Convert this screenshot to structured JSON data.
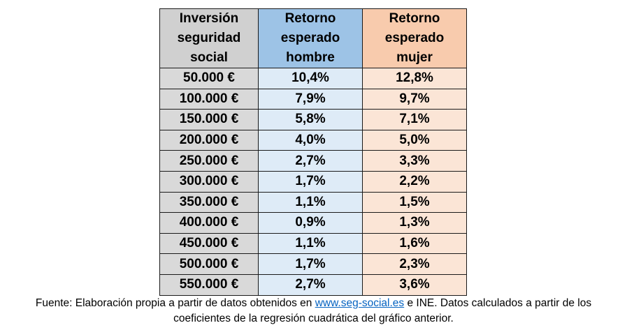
{
  "chart_data": {
    "type": "table",
    "headers": [
      [
        "Inversión",
        "seguridad",
        "social"
      ],
      [
        "Retorno",
        "esperado",
        "hombre"
      ],
      [
        "Retorno",
        "esperado",
        "mujer"
      ]
    ],
    "rows": [
      {
        "inversion": "50.000 €",
        "hombre": "10,4%",
        "mujer": "12,8%"
      },
      {
        "inversion": "100.000 €",
        "hombre": "7,9%",
        "mujer": "9,7%"
      },
      {
        "inversion": "150.000 €",
        "hombre": "5,8%",
        "mujer": "7,1%"
      },
      {
        "inversion": "200.000 €",
        "hombre": "4,0%",
        "mujer": "5,0%"
      },
      {
        "inversion": "250.000 €",
        "hombre": "2,7%",
        "mujer": "3,3%"
      },
      {
        "inversion": "300.000 €",
        "hombre": "1,7%",
        "mujer": "2,2%"
      },
      {
        "inversion": "350.000 €",
        "hombre": "1,1%",
        "mujer": "1,5%"
      },
      {
        "inversion": "400.000 €",
        "hombre": "0,9%",
        "mujer": "1,3%"
      },
      {
        "inversion": "450.000 €",
        "hombre": "1,1%",
        "mujer": "1,6%"
      },
      {
        "inversion": "500.000 €",
        "hombre": "1,7%",
        "mujer": "2,3%"
      },
      {
        "inversion": "550.000 €",
        "hombre": "2,7%",
        "mujer": "3,6%"
      }
    ]
  },
  "caption": {
    "part1": "Fuente: Elaboración propia a partir de datos obtenidos en ",
    "link": "www.seg-social.es",
    "part2": " e INE. Datos calculados a partir de los",
    "line2": "coeficientes de la regresión cuadrática del gráfico anterior."
  },
  "colors": {
    "header_inversion": "#d0d0d0",
    "header_hombre": "#9dc3e6",
    "header_mujer": "#f8cbad",
    "cell_inversion": "#d9d9d9",
    "cell_hombre": "#deebf7",
    "cell_mujer": "#fbe5d6",
    "link": "#0563c1"
  }
}
